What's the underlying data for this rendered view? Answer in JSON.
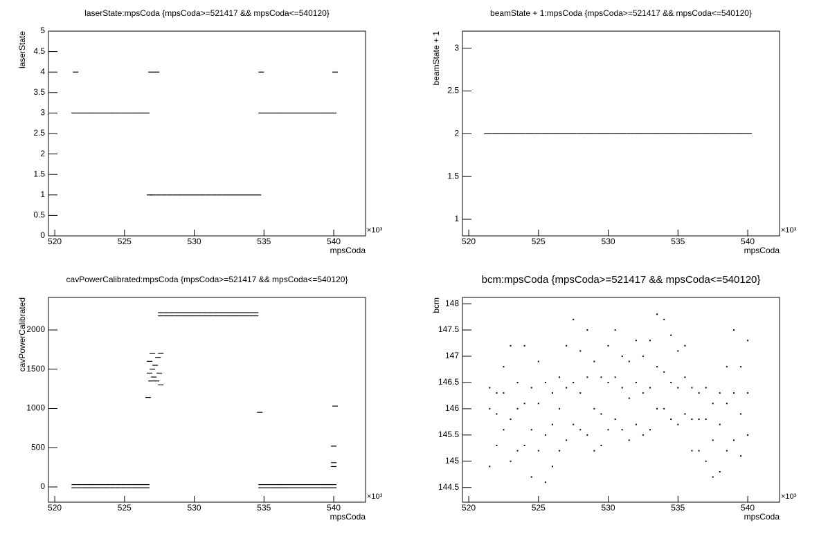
{
  "chart_data": [
    {
      "type": "scatter",
      "title": "laserState:mpsCoda {mpsCoda>=521417 && mpsCoda<=540120}",
      "xlabel": "mpsCoda",
      "ylabel": "laserState",
      "x_multiplier": "×10³",
      "xlim": [
        519.55,
        542.28
      ],
      "xticks": [
        520,
        525,
        530,
        535,
        540
      ],
      "ylim": [
        0,
        5
      ],
      "yticks": [
        0,
        0.5,
        1,
        1.5,
        2,
        2.5,
        3,
        3.5,
        4,
        4.5,
        5
      ],
      "series": [
        {
          "color": "#000000",
          "x": [
            521.4,
            521.8,
            522.2,
            522.6,
            523,
            523.4,
            523.8,
            524.2,
            524.6,
            525,
            525.4,
            525.8,
            526.2,
            526.6,
            526.8,
            527,
            527.4,
            527.8,
            528.2,
            528.6,
            529,
            529.4,
            529.8,
            530.2,
            530.6,
            531,
            531.4,
            531.8,
            532.2,
            532.6,
            533,
            533.4,
            533.8,
            534.2,
            534.6,
            534.8,
            535.2,
            535.6,
            536,
            536.4,
            536.8,
            537.2,
            537.6,
            538,
            538.4,
            538.8,
            539.2,
            539.6,
            540,
            521.5,
            526.9,
            527.3,
            534.8,
            540.1
          ],
          "values": [
            3,
            3,
            3,
            3,
            3,
            3,
            3,
            3,
            3,
            3,
            3,
            3,
            3,
            3,
            1,
            1,
            1,
            1,
            1,
            1,
            1,
            1,
            1,
            1,
            1,
            1,
            1,
            1,
            1,
            1,
            1,
            1,
            1,
            1,
            1,
            3,
            3,
            3,
            3,
            3,
            3,
            3,
            3,
            3,
            3,
            3,
            3,
            3,
            3,
            4,
            4,
            4,
            4,
            4
          ]
        }
      ]
    },
    {
      "type": "scatter",
      "title": "beamState + 1:mpsCoda {mpsCoda>=521417 && mpsCoda<=540120}",
      "xlabel": "mpsCoda",
      "ylabel": "beamState + 1",
      "x_multiplier": "×10³",
      "xlim": [
        519.55,
        542.28
      ],
      "xticks": [
        520,
        525,
        530,
        535,
        540
      ],
      "ylim": [
        0.806,
        3.2
      ],
      "yticks": [
        1,
        1.5,
        2,
        2.5,
        3
      ],
      "series": [
        {
          "color": "#000000",
          "x": [
            521.4,
            522,
            522.6,
            523.2,
            523.8,
            524.4,
            525,
            525.6,
            526.2,
            526.8,
            527.4,
            528,
            528.6,
            529.2,
            529.8,
            530.4,
            531,
            531.6,
            532.2,
            532.8,
            533.4,
            534,
            534.6,
            535.2,
            535.8,
            536.4,
            537,
            537.6,
            538.2,
            538.8,
            539.4,
            540
          ],
          "values": [
            2,
            2,
            2,
            2,
            2,
            2,
            2,
            2,
            2,
            2,
            2,
            2,
            2,
            2,
            2,
            2,
            2,
            2,
            2,
            2,
            2,
            2,
            2,
            2,
            2,
            2,
            2,
            2,
            2,
            2,
            2,
            2
          ]
        }
      ]
    },
    {
      "type": "scatter",
      "title": "cavPowerCalibrated:mpsCoda {mpsCoda>=521417 && mpsCoda<=540120}",
      "xlabel": "mpsCoda",
      "ylabel": "cavPowerCalibrated",
      "x_multiplier": "×10³",
      "xlim": [
        519.55,
        542.28
      ],
      "xticks": [
        520,
        525,
        530,
        535,
        540
      ],
      "ylim": [
        -194,
        2414
      ],
      "yticks": [
        0,
        500,
        1000,
        1500,
        2000
      ],
      "series": [
        {
          "color": "#000000",
          "x": [
            521.4,
            521.8,
            522.2,
            522.6,
            523,
            523.4,
            523.8,
            524.2,
            524.6,
            525,
            525.4,
            525.8,
            526.2,
            526.6,
            521.4,
            521.8,
            522.2,
            522.6,
            523,
            523.4,
            523.8,
            524.2,
            524.6,
            525,
            525.4,
            525.8,
            526.2,
            526.6,
            534.8,
            535.2,
            535.6,
            536,
            536.4,
            536.8,
            537.2,
            537.6,
            538,
            538.4,
            538.8,
            539.2,
            539.6,
            540,
            534.8,
            535.2,
            535.6,
            536,
            536.4,
            536.8,
            537.2,
            537.6,
            538,
            538.4,
            538.8,
            539.2,
            539.6,
            540,
            527.6,
            528,
            528.4,
            528.8,
            529.2,
            529.6,
            530,
            530.4,
            530.8,
            531.2,
            531.6,
            532,
            532.4,
            532.8,
            533.2,
            533.6,
            534,
            534.4,
            527.6,
            528,
            528.4,
            528.8,
            529.2,
            529.6,
            530,
            530.4,
            530.8,
            531.2,
            531.6,
            532,
            532.4,
            532.8,
            533.2,
            533.6,
            534,
            534.4,
            526.8,
            526.8,
            526.9,
            527,
            527,
            527.1,
            527.2,
            527.3,
            527.4,
            527.5,
            527.6,
            527.6,
            526.7,
            534.7,
            540.1,
            540,
            540,
            540
          ],
          "values": [
            30,
            30,
            30,
            30,
            30,
            30,
            30,
            30,
            30,
            30,
            30,
            30,
            30,
            30,
            -10,
            -10,
            -10,
            -10,
            -10,
            -10,
            -10,
            -10,
            -10,
            -10,
            -10,
            -10,
            -10,
            -10,
            30,
            30,
            30,
            30,
            30,
            30,
            30,
            30,
            30,
            30,
            30,
            30,
            30,
            30,
            -10,
            -10,
            -10,
            -10,
            -10,
            -10,
            -10,
            -10,
            -10,
            -10,
            -10,
            -10,
            -10,
            -10,
            2220,
            2220,
            2220,
            2220,
            2220,
            2220,
            2220,
            2220,
            2220,
            2220,
            2220,
            2220,
            2220,
            2220,
            2220,
            2220,
            2220,
            2220,
            2180,
            2180,
            2180,
            2180,
            2180,
            2180,
            2180,
            2180,
            2180,
            2180,
            2180,
            2180,
            2180,
            2180,
            2180,
            2180,
            2180,
            2180,
            1450,
            1600,
            1350,
            1500,
            1700,
            1400,
            1550,
            1350,
            1650,
            1450,
            1300,
            1700,
            1140,
            950,
            1030,
            520,
            310,
            260
          ]
        }
      ]
    },
    {
      "type": "scatter",
      "title": "bcm:mpsCoda {mpsCoda>=521417 && mpsCoda<=540120}",
      "xlabel": "mpsCoda",
      "ylabel": "bcm",
      "x_multiplier": "×10³",
      "xlim": [
        519.55,
        542.28
      ],
      "xticks": [
        520,
        525,
        530,
        535,
        540
      ],
      "ylim": [
        144.22,
        148.12
      ],
      "yticks": [
        144.5,
        145,
        145.5,
        146,
        146.5,
        147,
        147.5,
        148
      ],
      "x": [
        521.5,
        522,
        522.5,
        523,
        523.5,
        524,
        524.5,
        525,
        525.5,
        526,
        526.5,
        527,
        527.5,
        528,
        528.5,
        529,
        529.5,
        530,
        530.5,
        531,
        531.5,
        532,
        532.5,
        533,
        533.5,
        534,
        534.5,
        535,
        535.5,
        536,
        536.5,
        537,
        537.5,
        538,
        538.5,
        539,
        539.5,
        540
      ],
      "series": [
        {
          "color": "#000000",
          "values": [
            146.4,
            146.3,
            146.8,
            147.2,
            146.5,
            147.2,
            146.4,
            146.9,
            146.5,
            146.3,
            146.6,
            147.2,
            147.7,
            147.1,
            147.5,
            146.9,
            146.6,
            147.2,
            147.5,
            147.0,
            146.9,
            147.3,
            147.0,
            147.3,
            147.8,
            147.7,
            147.4,
            147.1,
            147.2,
            146.4,
            146.3,
            146.4,
            146.1,
            146.3,
            146.8,
            147.5,
            146.8,
            147.3
          ]
        },
        {
          "color": "#000000",
          "values": [
            146.0,
            145.9,
            146.3,
            145.8,
            146.0,
            146.1,
            145.6,
            146.1,
            145.5,
            145.7,
            146.0,
            146.4,
            146.5,
            146.3,
            146.6,
            146.0,
            145.9,
            146.5,
            146.6,
            146.4,
            146.2,
            146.5,
            146.3,
            146.4,
            146.8,
            146.7,
            146.5,
            146.4,
            146.6,
            145.8,
            145.8,
            145.8,
            145.4,
            145.7,
            146.1,
            146.3,
            145.9,
            146.3
          ]
        },
        {
          "color": "#000000",
          "values": [
            144.9,
            145.3,
            145.6,
            145.0,
            145.2,
            145.3,
            144.7,
            145.2,
            144.6,
            144.9,
            145.2,
            145.4,
            145.7,
            145.6,
            145.5,
            145.2,
            145.3,
            145.6,
            145.8,
            145.6,
            145.4,
            145.7,
            145.5,
            145.6,
            146.0,
            146.0,
            145.8,
            145.7,
            145.9,
            145.2,
            145.2,
            145.0,
            144.7,
            144.8,
            145.2,
            145.4,
            145.1,
            145.5
          ]
        }
      ]
    }
  ]
}
